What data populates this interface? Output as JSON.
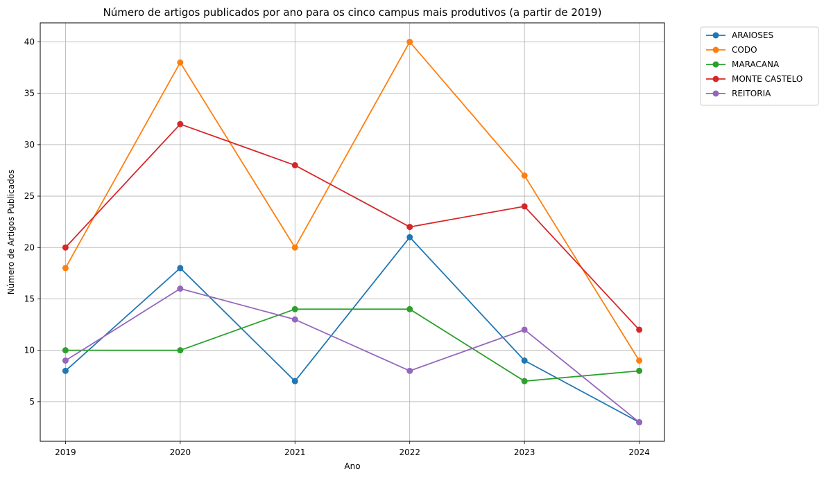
{
  "chart_data": {
    "type": "line",
    "title": "Número de artigos publicados por ano para os cinco campus mais produtivos (a partir de 2019)",
    "xlabel": "Ano",
    "ylabel": "Número de Artigos Publicados",
    "x": [
      "2019",
      "2020",
      "2021",
      "2022",
      "2023",
      "2024"
    ],
    "yticks": [
      "5",
      "10",
      "15",
      "20",
      "25",
      "30",
      "35",
      "40"
    ],
    "ylim": [
      1.15,
      41.85
    ],
    "grid": true,
    "legend_position": "outside top-right",
    "series": [
      {
        "name": "ARAIOSES",
        "color": "#1f77b4",
        "values": [
          8,
          18,
          7,
          21,
          9,
          3
        ]
      },
      {
        "name": "CODO",
        "color": "#ff7f0e",
        "values": [
          18,
          38,
          20,
          40,
          27,
          9
        ]
      },
      {
        "name": "MARACANA",
        "color": "#2ca02c",
        "values": [
          10,
          10,
          14,
          14,
          7,
          8
        ]
      },
      {
        "name": "MONTE CASTELO",
        "color": "#d62728",
        "values": [
          20,
          32,
          28,
          22,
          24,
          12
        ]
      },
      {
        "name": "REITORIA",
        "color": "#9467bd",
        "values": [
          9,
          16,
          13,
          8,
          12,
          3
        ]
      }
    ]
  }
}
